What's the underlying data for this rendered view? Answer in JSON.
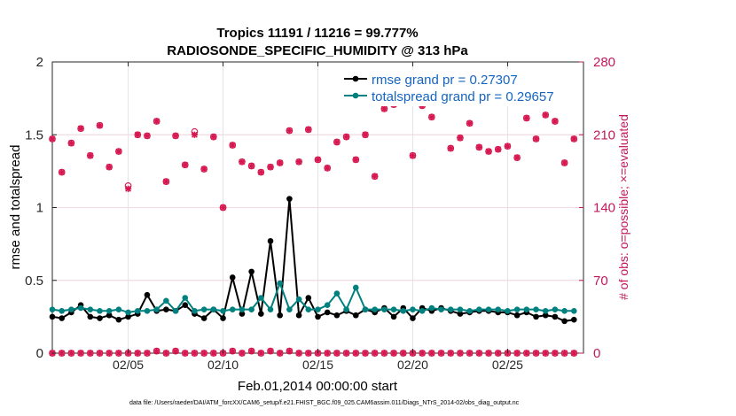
{
  "chart_data": {
    "type": "line",
    "title": "Tropics 11191 / 11216 = 99.777%",
    "subtitle": "RADIOSONDE_SPECIFIC_HUMIDITY @ 313 hPa",
    "xlabel": "Feb.01,2014 00:00:00 start",
    "ylabel": "rmse and totalspread",
    "ylabel_right": "# of obs: o=possible; ×=evaluated",
    "footnote": "data file: /Users/raeder/DAI/ATM_forcXX/CAM6_setup/f.e21.FHIST_BGC.f09_025.CAM6assim.011/Diags_NTrS_2014-02/obs_diag_output.nc",
    "xlim": [
      1.0,
      29.0
    ],
    "ylim": [
      0,
      2
    ],
    "ylim_right": [
      0,
      280
    ],
    "x_ticks": [
      5,
      10,
      15,
      20,
      25
    ],
    "x_tick_labels": [
      "02/05",
      "02/10",
      "02/15",
      "02/20",
      "02/25"
    ],
    "y_ticks": [
      0,
      0.5,
      1,
      1.5,
      2
    ],
    "y_tick_labels": [
      "0",
      "0.5",
      "1",
      "1.5",
      "2"
    ],
    "y_right_ticks": [
      0,
      70,
      140,
      210,
      280
    ],
    "y_right_tick_labels": [
      "0",
      "70",
      "140",
      "210",
      "280"
    ],
    "grid": true,
    "legend_position": "top-right",
    "x": [
      1.0,
      1.5,
      2.0,
      2.5,
      3.0,
      3.5,
      4.0,
      4.5,
      5.0,
      5.5,
      6.0,
      6.5,
      7.0,
      7.5,
      8.0,
      8.5,
      9.0,
      9.5,
      10.0,
      10.5,
      11.0,
      11.5,
      12.0,
      12.5,
      13.0,
      13.5,
      14.0,
      14.5,
      15.0,
      15.5,
      16.0,
      16.5,
      17.0,
      17.5,
      18.0,
      18.5,
      19.0,
      19.5,
      20.0,
      20.5,
      21.0,
      21.5,
      22.0,
      22.5,
      23.0,
      23.5,
      24.0,
      24.5,
      25.0,
      25.5,
      26.0,
      26.5,
      27.0,
      27.5,
      28.0,
      28.5
    ],
    "series": [
      {
        "name": "rmse grand pr = 0.27307",
        "color": "#000000",
        "values": [
          0.25,
          0.24,
          0.28,
          0.33,
          0.25,
          0.24,
          0.26,
          0.23,
          0.25,
          0.27,
          0.4,
          0.29,
          0.3,
          0.29,
          0.33,
          0.27,
          0.24,
          0.3,
          0.24,
          0.52,
          0.27,
          0.56,
          0.27,
          0.77,
          0.26,
          1.06,
          0.26,
          0.38,
          0.25,
          0.28,
          0.26,
          0.29,
          0.26,
          0.3,
          0.28,
          0.31,
          0.25,
          0.31,
          0.24,
          0.31,
          0.29,
          0.31,
          0.29,
          0.27,
          0.28,
          0.29,
          0.29,
          0.28,
          0.28,
          0.26,
          0.28,
          0.25,
          0.26,
          0.25,
          0.22,
          0.23
        ]
      },
      {
        "name": "totalspread grand pr = 0.29657",
        "color": "#00807f",
        "values": [
          0.3,
          0.29,
          0.3,
          0.31,
          0.3,
          0.29,
          0.29,
          0.3,
          0.28,
          0.29,
          0.29,
          0.3,
          0.36,
          0.29,
          0.38,
          0.29,
          0.3,
          0.3,
          0.29,
          0.3,
          0.3,
          0.3,
          0.38,
          0.3,
          0.48,
          0.3,
          0.37,
          0.3,
          0.3,
          0.33,
          0.41,
          0.3,
          0.45,
          0.3,
          0.3,
          0.3,
          0.3,
          0.29,
          0.3,
          0.29,
          0.31,
          0.3,
          0.3,
          0.3,
          0.29,
          0.3,
          0.3,
          0.3,
          0.29,
          0.3,
          0.3,
          0.3,
          0.29,
          0.3,
          0.29,
          0.29
        ]
      }
    ],
    "obs_series": {
      "color": "#d6174f",
      "x": [
        1,
        1.5,
        2,
        2.5,
        3,
        3.5,
        4,
        4.5,
        5,
        5.5,
        6,
        6.5,
        7,
        7.5,
        8,
        8.5,
        9,
        9.5,
        10,
        10.5,
        11,
        11.5,
        12,
        12.5,
        13,
        13.5,
        14,
        14.5,
        15,
        15.5,
        16,
        16.5,
        17,
        17.5,
        18,
        18.5,
        19,
        19.5,
        20,
        20.5,
        21,
        21.5,
        22,
        22.5,
        23,
        23.5,
        24,
        24.5,
        25,
        25.5,
        26,
        26.5,
        27,
        27.5,
        28,
        28.5
      ],
      "possible_top": [
        206,
        174,
        202,
        216,
        190,
        219,
        179,
        194,
        161,
        210,
        209,
        223,
        165,
        209,
        181,
        213,
        177,
        208,
        140,
        200,
        184,
        180,
        174,
        179,
        183,
        214,
        184,
        215,
        186,
        178,
        203,
        208,
        186,
        210,
        170,
        235,
        239,
        248,
        190,
        238,
        227,
        245,
        197,
        207,
        221,
        198,
        194,
        196,
        199,
        188,
        226,
        206,
        229,
        223,
        183,
        206
      ],
      "evaluated_top": [
        206,
        174,
        202,
        216,
        190,
        219,
        179,
        194,
        158,
        210,
        209,
        223,
        165,
        209,
        181,
        210,
        177,
        208,
        140,
        200,
        184,
        180,
        174,
        179,
        183,
        214,
        184,
        215,
        186,
        178,
        203,
        208,
        186,
        210,
        170,
        235,
        239,
        248,
        190,
        238,
        227,
        245,
        197,
        207,
        221,
        198,
        194,
        196,
        199,
        188,
        226,
        206,
        229,
        223,
        183,
        206
      ],
      "possible_bottom": [
        0,
        0,
        0,
        0,
        0,
        0,
        0,
        0,
        0,
        0,
        0,
        2,
        0,
        2,
        0,
        0,
        0,
        0,
        0,
        2,
        0,
        2,
        0,
        2,
        0,
        2,
        0,
        0,
        0,
        0,
        0,
        0,
        0,
        0,
        0,
        0,
        0,
        0,
        0,
        0,
        0,
        0,
        0,
        0,
        0,
        0,
        0,
        0,
        0,
        0,
        0,
        0,
        0,
        0,
        0,
        0
      ],
      "evaluated_bottom": [
        0,
        0,
        0,
        0,
        0,
        0,
        0,
        0,
        0,
        0,
        0,
        2,
        0,
        2,
        0,
        0,
        0,
        0,
        0,
        2,
        0,
        2,
        0,
        2,
        0,
        2,
        0,
        0,
        0,
        0,
        0,
        0,
        0,
        0,
        0,
        0,
        0,
        0,
        0,
        0,
        0,
        0,
        0,
        0,
        0,
        0,
        0,
        0,
        0,
        0,
        0,
        0,
        0,
        0,
        0,
        0
      ]
    }
  }
}
